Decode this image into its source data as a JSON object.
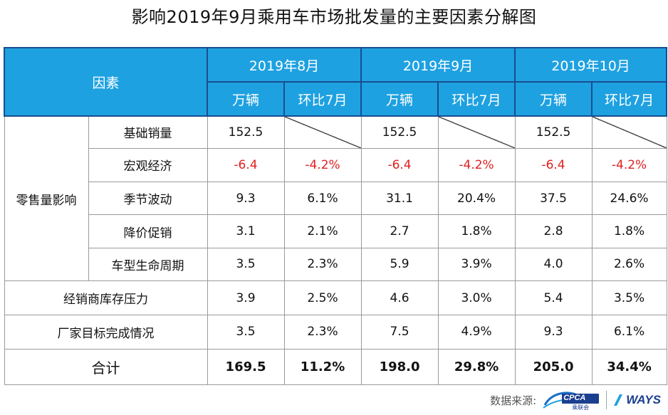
{
  "title": "影响2019年9月乘用车市场批发量的主要因素分解图",
  "header": {
    "factor_label": "因素",
    "periods": [
      "2019年8月",
      "2019年9月",
      "2019年10月"
    ],
    "unit_label": "万辆",
    "mom_label": "环比7月"
  },
  "group_label": "零售量影响",
  "rows": [
    {
      "label": "基础销量",
      "v": [
        "152.5",
        "",
        "152.5",
        "",
        "152.5",
        ""
      ]
    },
    {
      "label": "宏观经济",
      "v": [
        "-6.4",
        "-4.2%",
        "-6.4",
        "-4.2%",
        "-6.4",
        "-4.2%"
      ]
    },
    {
      "label": "季节波动",
      "v": [
        "9.3",
        "6.1%",
        "31.1",
        "20.4%",
        "37.5",
        "24.6%"
      ]
    },
    {
      "label": "降价促销",
      "v": [
        "3.1",
        "2.1%",
        "2.7",
        "1.8%",
        "2.8",
        "1.8%"
      ]
    },
    {
      "label": "车型生命周期",
      "v": [
        "3.5",
        "2.3%",
        "5.9",
        "3.9%",
        "4.0",
        "2.6%"
      ]
    },
    {
      "label": "经销商库存压力",
      "v": [
        "3.9",
        "2.5%",
        "4.6",
        "3.0%",
        "5.4",
        "3.5%"
      ]
    },
    {
      "label": "厂家目标完成情况",
      "v": [
        "3.5",
        "2.3%",
        "7.5",
        "4.9%",
        "9.3",
        "6.1%"
      ]
    }
  ],
  "total": {
    "label": "合计",
    "v": [
      "169.5",
      "11.2%",
      "198.0",
      "29.8%",
      "205.0",
      "34.4%"
    ]
  },
  "footer": {
    "source_label": "数据来源:",
    "cpca_text": "CPCA",
    "cpca_sub": "乘联会",
    "ways_text": "WAYS"
  },
  "colors": {
    "header_bg": "#1ea1e1",
    "header_border": "#1a4d8f",
    "negative": "#e02020"
  }
}
